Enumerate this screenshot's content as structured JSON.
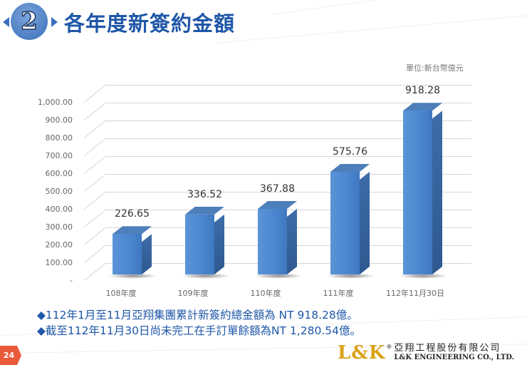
{
  "header": {
    "section_number": "2",
    "title": "各年度新簽約金額"
  },
  "chart_data": {
    "type": "bar",
    "title": "各年度新簽約金額",
    "unit_label": "單位:新台幣億元",
    "categories": [
      "108年度",
      "109年度",
      "110年度",
      "111年度",
      "112年11月30日"
    ],
    "values": [
      226.65,
      336.52,
      367.88,
      575.76,
      918.28
    ],
    "value_labels": [
      "226.65",
      "336.52",
      "367.88",
      "575.76",
      "918.28"
    ],
    "xlabel": "",
    "ylabel": "",
    "ylim": [
      0,
      1000
    ],
    "yticks": [
      "1,000.00",
      "900.00",
      "800.00",
      "700.00",
      "600.00",
      "500.00",
      "400.00",
      "300.00",
      "200.00",
      "100.00",
      "-"
    ],
    "grid": true,
    "style": "3d-column",
    "bar_color": "#4a86d0"
  },
  "notes": [
    "112年1月至11月亞翔集團累計新簽約總金額為 NT  918.28億。",
    "截至112年11月30日尚未完工在手訂單餘額為NT 1,280.54億。"
  ],
  "notes_bullet": "◆",
  "footer": {
    "page_number": "24",
    "logo_mark": "L&K",
    "logo_reg": "®",
    "company_cn": "亞翔工程股份有限公司",
    "company_en": "L&K ENGINEERING CO., LTD."
  }
}
